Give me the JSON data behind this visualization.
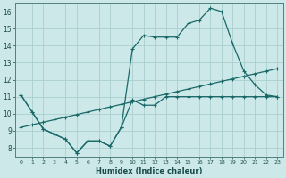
{
  "background_color": "#cce8e8",
  "grid_color": "#aad0d0",
  "line_color": "#1a6868",
  "xlabel": "Humidex (Indice chaleur)",
  "ylim": [
    7.5,
    16.5
  ],
  "xlim": [
    -0.5,
    23.5
  ],
  "yticks": [
    8,
    9,
    10,
    11,
    12,
    13,
    14,
    15,
    16
  ],
  "xticks": [
    0,
    1,
    2,
    3,
    4,
    5,
    6,
    7,
    8,
    9,
    10,
    11,
    12,
    13,
    14,
    15,
    16,
    17,
    18,
    19,
    20,
    21,
    22,
    23
  ],
  "series1_x": [
    0,
    1,
    2,
    3,
    4,
    5,
    6,
    7,
    8,
    9,
    10,
    11,
    12,
    13,
    14,
    15,
    16,
    17,
    18,
    19,
    20,
    21,
    22,
    23
  ],
  "series1_y": [
    11.1,
    10.1,
    9.1,
    8.8,
    8.5,
    7.7,
    8.4,
    8.4,
    8.1,
    9.2,
    10.8,
    10.5,
    10.5,
    11.0,
    11.0,
    11.0,
    11.0,
    11.0,
    11.0,
    11.0,
    11.0,
    11.0,
    11.0,
    11.0
  ],
  "series2_x": [
    0,
    1,
    2,
    3,
    4,
    5,
    6,
    7,
    8,
    9,
    10,
    11,
    12,
    13,
    14,
    15,
    16,
    17,
    18,
    19,
    20,
    21,
    22,
    23
  ],
  "series2_y": [
    11.1,
    10.1,
    9.1,
    8.8,
    8.5,
    7.7,
    8.4,
    8.4,
    8.1,
    9.2,
    13.8,
    14.6,
    14.5,
    14.5,
    14.5,
    15.3,
    15.5,
    16.2,
    16.0,
    14.1,
    12.5,
    11.7,
    11.1,
    11.0
  ],
  "series3_x": [
    0,
    1,
    2,
    3,
    4,
    5,
    6,
    7,
    8,
    9,
    10,
    11,
    12,
    13,
    14,
    15,
    16,
    17,
    18,
    19,
    20,
    21,
    22,
    23
  ],
  "series3_y": [
    9.2,
    9.35,
    9.5,
    9.65,
    9.8,
    9.95,
    10.1,
    10.25,
    10.4,
    10.55,
    10.7,
    10.85,
    11.0,
    11.15,
    11.3,
    11.45,
    11.6,
    11.75,
    11.9,
    12.05,
    12.2,
    12.35,
    12.5,
    12.65
  ]
}
